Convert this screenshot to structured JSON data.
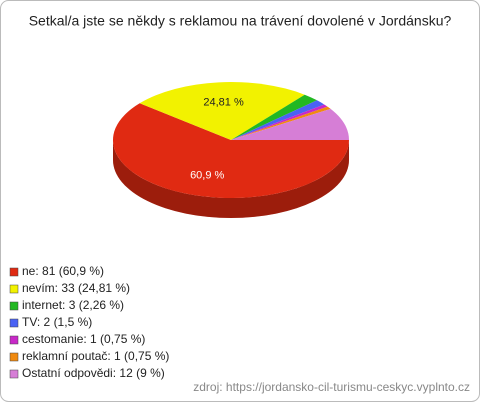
{
  "chart_data": {
    "type": "pie",
    "title": "Setkal/a jste se někdy s reklamou na trávení dovolené v Jordánsku?",
    "legend_labels": [
      "ne: 81 (60,9 %)",
      "nevím: 33 (24,81 %)",
      "internet: 3 (2,26 %)",
      "TV: 2 (1,5 %)",
      "cestomanie: 1 (0,75 %)",
      "reklamní poutač: 1 (0,75 %)",
      "Ostatní odpovědi: 12 (9 %)"
    ],
    "values": [
      60.9,
      24.81,
      2.26,
      1.5,
      0.75,
      0.75,
      9
    ],
    "value_labels": [
      "60,9 %",
      "24,81 %",
      null,
      null,
      null,
      null,
      null
    ],
    "colors": [
      "#e02a12",
      "#f2f200",
      "#22b822",
      "#4a62f4",
      "#c828c8",
      "#f08a10",
      "#d67ed6"
    ],
    "source": "zdroj: https://jordansko-cil-turismu-ceskyc.vyplnto.cz"
  }
}
